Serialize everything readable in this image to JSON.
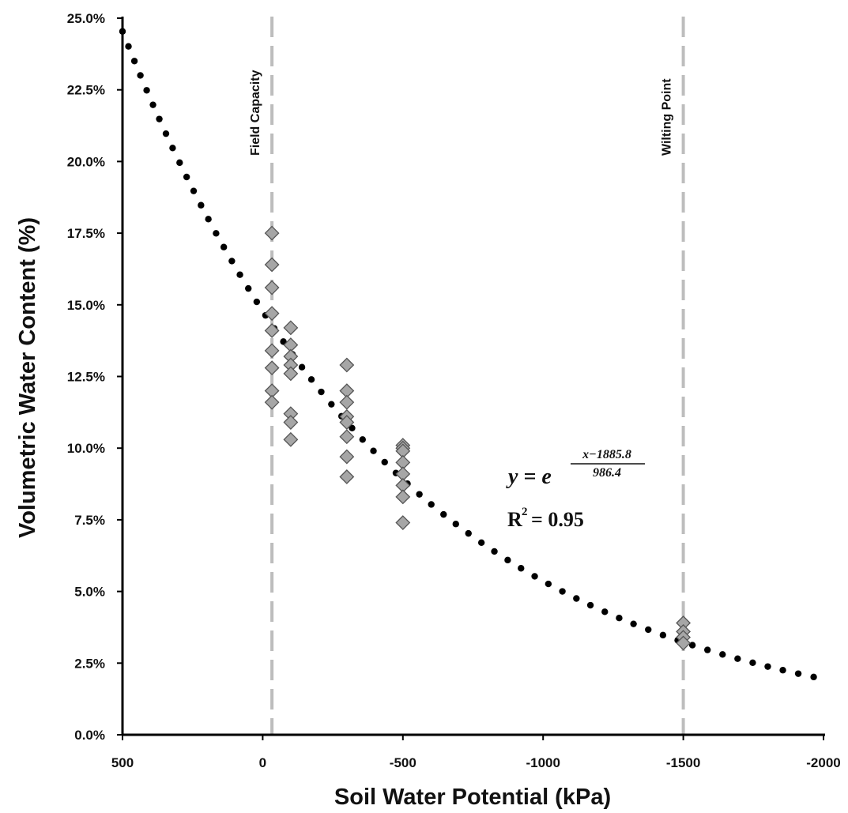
{
  "chart_data": {
    "type": "scatter",
    "xlabel": "Soil Water Potential (kPa)",
    "ylabel": "Volumetric Water Content (%)",
    "xlim": [
      500,
      -2000
    ],
    "ylim": [
      0,
      25
    ],
    "x_ticks": [
      500,
      0,
      -500,
      -1000,
      -1500,
      -2000
    ],
    "x_tick_labels": [
      "500",
      "0",
      "-500",
      "-1000",
      "-1500",
      "-2000"
    ],
    "y_ticks": [
      0,
      2.5,
      5,
      7.5,
      10,
      12.5,
      15,
      17.5,
      20,
      22.5,
      25
    ],
    "y_tick_labels": [
      "0.0%",
      "2.5%",
      "5.0%",
      "7.5%",
      "10.0%",
      "12.5%",
      "15.0%",
      "17.5%",
      "20.0%",
      "22.5%",
      "25.0%"
    ],
    "grid": false,
    "reference_lines": [
      {
        "x": -33,
        "label": "Field Capacity"
      },
      {
        "x": -1500,
        "label": "Wilting Point"
      }
    ],
    "series": [
      {
        "marker": "diamond",
        "color": "#a6a6a6",
        "points": [
          {
            "x": -33,
            "y": 17.5
          },
          {
            "x": -33,
            "y": 16.4
          },
          {
            "x": -33,
            "y": 15.6
          },
          {
            "x": -33,
            "y": 14.7
          },
          {
            "x": -33,
            "y": 14.1
          },
          {
            "x": -33,
            "y": 13.4
          },
          {
            "x": -33,
            "y": 12.8
          },
          {
            "x": -33,
            "y": 12.0
          },
          {
            "x": -33,
            "y": 11.6
          },
          {
            "x": -100,
            "y": 14.2
          },
          {
            "x": -100,
            "y": 13.6
          },
          {
            "x": -100,
            "y": 13.2
          },
          {
            "x": -100,
            "y": 12.9
          },
          {
            "x": -100,
            "y": 12.6
          },
          {
            "x": -100,
            "y": 11.2
          },
          {
            "x": -100,
            "y": 10.9
          },
          {
            "x": -100,
            "y": 10.3
          },
          {
            "x": -300,
            "y": 12.9
          },
          {
            "x": -300,
            "y": 12.0
          },
          {
            "x": -300,
            "y": 11.6
          },
          {
            "x": -300,
            "y": 11.1
          },
          {
            "x": -300,
            "y": 10.9
          },
          {
            "x": -300,
            "y": 10.4
          },
          {
            "x": -300,
            "y": 9.7
          },
          {
            "x": -300,
            "y": 9.0
          },
          {
            "x": -500,
            "y": 10.1
          },
          {
            "x": -500,
            "y": 10.0
          },
          {
            "x": -500,
            "y": 9.9
          },
          {
            "x": -500,
            "y": 9.5
          },
          {
            "x": -500,
            "y": 9.1
          },
          {
            "x": -500,
            "y": 8.7
          },
          {
            "x": -500,
            "y": 8.3
          },
          {
            "x": -500,
            "y": 7.4
          },
          {
            "x": -1500,
            "y": 3.9
          },
          {
            "x": -1500,
            "y": 3.6
          },
          {
            "x": -1500,
            "y": 3.4
          },
          {
            "x": -1500,
            "y": 3.2
          }
        ]
      },
      {
        "line_style": "dotted",
        "color": "#000000",
        "equation": {
          "a": 1885.8,
          "b": 986.4
        },
        "x_range": [
          500,
          -2000
        ],
        "points": [
          {
            "x": 500,
            "y": 24.5
          },
          {
            "x": 250,
            "y": 19.1
          },
          {
            "x": 0,
            "y": 14.8
          },
          {
            "x": -250,
            "y": 11.6
          },
          {
            "x": -500,
            "y": 9.0
          },
          {
            "x": -750,
            "y": 7.0
          },
          {
            "x": -1000,
            "y": 5.4
          },
          {
            "x": -1250,
            "y": 4.2
          },
          {
            "x": -1500,
            "y": 3.3
          },
          {
            "x": -1750,
            "y": 2.6
          },
          {
            "x": -2000,
            "y": 2.0
          }
        ]
      }
    ],
    "annotations": {
      "eq_lhs": "y = e",
      "eq_num": "x−1885.8",
      "eq_den": "986.4",
      "r2_base": "R",
      "r2_sup": "2",
      "r2_value": "= 0.95"
    }
  }
}
